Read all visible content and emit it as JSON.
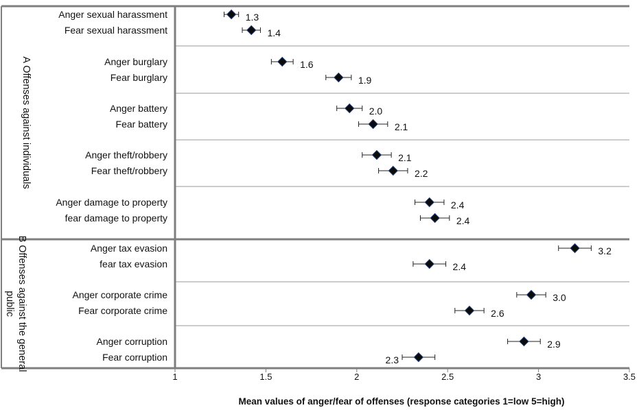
{
  "chart_data": {
    "type": "scatter",
    "orientation": "horizontal",
    "title": "",
    "xlabel": "Mean values of anger/fear of offenses (response categories 1=low 5=high)",
    "ylabel": "",
    "xlim": [
      1,
      3.5
    ],
    "x_ticks": [
      "1",
      "1.5",
      "2",
      "2.5",
      "3",
      "3.5"
    ],
    "x_tick_values": [
      1,
      1.5,
      2,
      2.5,
      3,
      3.5
    ],
    "grid": false,
    "error_bars": true,
    "marker_color": "#000000",
    "groups": [
      {
        "label": "A Offenses against individuals",
        "categories": [
          {
            "items": [
              {
                "label": "Anger sexual harassment",
                "value": 1.31,
                "err": 0.04,
                "value_label": "1.3"
              },
              {
                "label": "Fear sexual harassment",
                "value": 1.42,
                "err": 0.05,
                "value_label": "1.4"
              }
            ]
          },
          {
            "items": [
              {
                "label": "Anger burglary",
                "value": 1.59,
                "err": 0.06,
                "value_label": "1.6"
              },
              {
                "label": "Fear burglary",
                "value": 1.9,
                "err": 0.07,
                "value_label": "1.9"
              }
            ]
          },
          {
            "items": [
              {
                "label": "Anger battery",
                "value": 1.96,
                "err": 0.07,
                "value_label": "2.0"
              },
              {
                "label": "Fear battery",
                "value": 2.09,
                "err": 0.08,
                "value_label": "2.1"
              }
            ]
          },
          {
            "items": [
              {
                "label": "Anger theft/robbery",
                "value": 2.11,
                "err": 0.08,
                "value_label": "2.1"
              },
              {
                "label": "Fear theft/robbery",
                "value": 2.2,
                "err": 0.08,
                "value_label": "2.2"
              }
            ]
          },
          {
            "items": [
              {
                "label": "Anger damage to property",
                "value": 2.4,
                "err": 0.08,
                "value_label": "2.4"
              },
              {
                "label": "fear damage to property",
                "value": 2.43,
                "err": 0.08,
                "value_label": "2.4"
              }
            ]
          }
        ]
      },
      {
        "label": "B Offenses against the general public",
        "categories": [
          {
            "items": [
              {
                "label": "Anger tax evasion",
                "value": 3.2,
                "err": 0.09,
                "value_label": "3.2"
              },
              {
                "label": "fear tax evasion",
                "value": 2.4,
                "err": 0.09,
                "value_label": "2.4"
              }
            ]
          },
          {
            "items": [
              {
                "label": "Anger corporate crime",
                "value": 2.96,
                "err": 0.08,
                "value_label": "3.0"
              },
              {
                "label": "Fear corporate crime",
                "value": 2.62,
                "err": 0.08,
                "value_label": "2.6"
              }
            ]
          },
          {
            "items": [
              {
                "label": "Anger corruption",
                "value": 2.92,
                "err": 0.09,
                "value_label": "2.9"
              },
              {
                "label": "Fear corruption",
                "value": 2.34,
                "err": 0.09,
                "value_label": "2.3",
                "value_label_side": "left"
              }
            ]
          }
        ]
      }
    ]
  }
}
